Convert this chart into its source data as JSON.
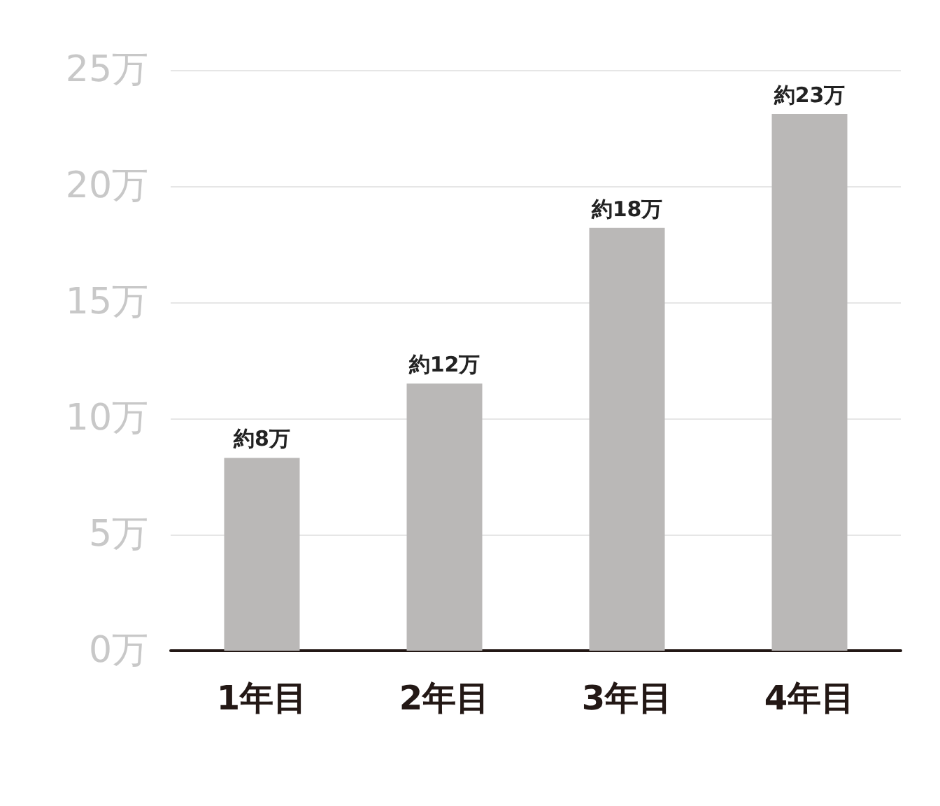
{
  "chart_data": {
    "type": "bar",
    "categories": [
      "1年目",
      "2年目",
      "3年目",
      "4年目"
    ],
    "values": [
      8.3,
      11.5,
      18.2,
      23.1
    ],
    "value_labels": [
      "約8万",
      "約12万",
      "約18万",
      "約23万"
    ],
    "color": "#bab8b7",
    "ylim": [
      0,
      25
    ],
    "yticks": [
      {
        "value": 0,
        "label": "0万"
      },
      {
        "value": 5,
        "label": "5万"
      },
      {
        "value": 10,
        "label": "10万"
      },
      {
        "value": 15,
        "label": "15万"
      },
      {
        "value": 20,
        "label": "20万"
      },
      {
        "value": 25,
        "label": "25万"
      }
    ],
    "grid": "y"
  }
}
